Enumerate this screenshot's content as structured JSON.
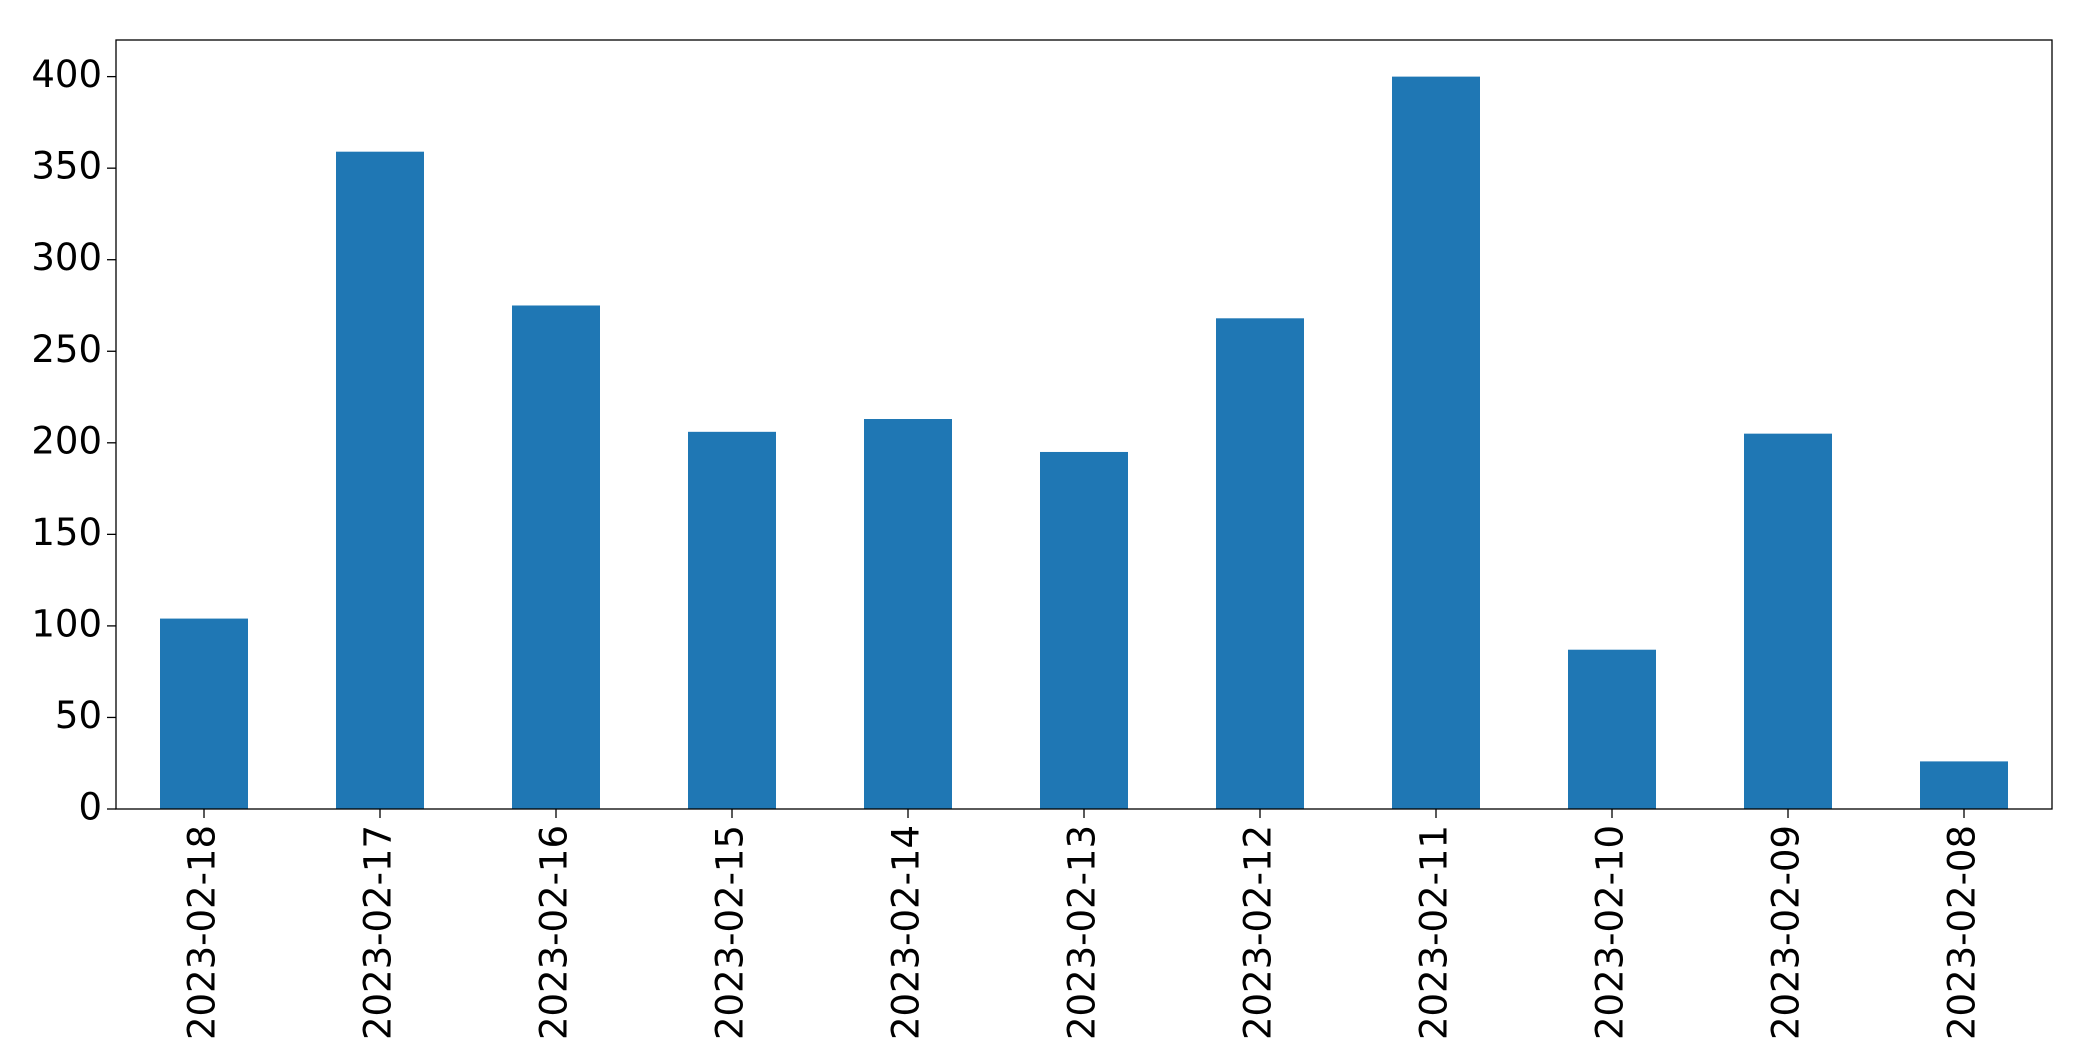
{
  "chart_data": {
    "type": "bar",
    "categories": [
      "2023-02-18",
      "2023-02-17",
      "2023-02-16",
      "2023-02-15",
      "2023-02-14",
      "2023-02-13",
      "2023-02-12",
      "2023-02-11",
      "2023-02-10",
      "2023-02-09",
      "2023-02-08"
    ],
    "values": [
      104,
      359,
      275,
      206,
      213,
      195,
      268,
      400,
      87,
      205,
      26
    ],
    "color": "#1f77b4",
    "ylim": [
      0,
      420
    ],
    "yticks": [
      0,
      50,
      100,
      150,
      200,
      250,
      300,
      350,
      400
    ],
    "grid": false
  }
}
